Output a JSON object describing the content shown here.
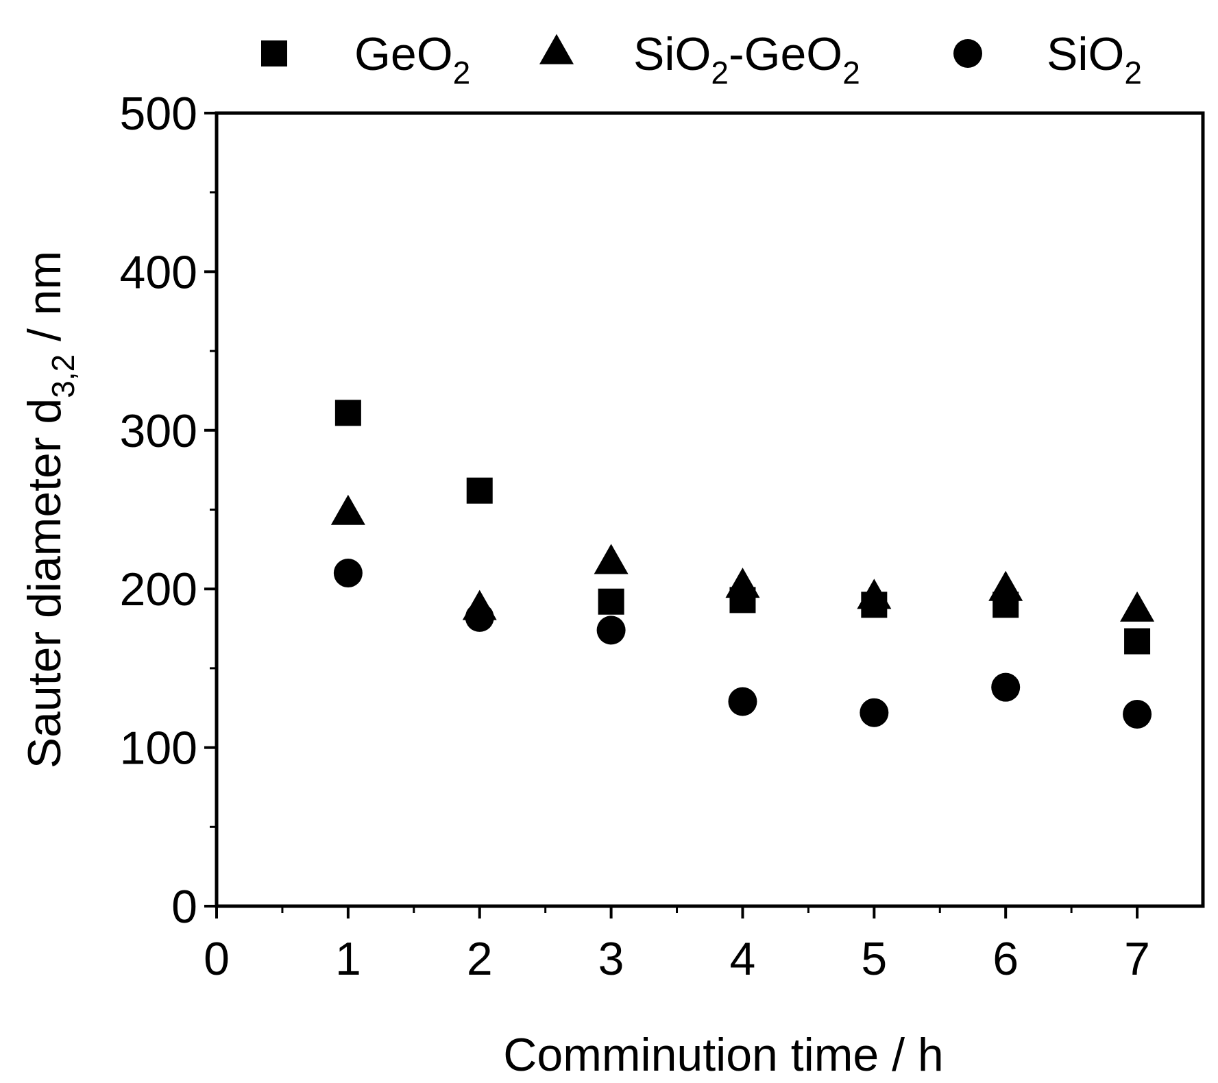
{
  "chart_data": {
    "type": "scatter",
    "title": "",
    "xlabel": "Comminution time / h",
    "ylabel": {
      "main": "Sauter diameter d",
      "subscript": "3,2",
      "unit": " / nm"
    },
    "xlim": [
      0,
      7.5
    ],
    "ylim": [
      0,
      500
    ],
    "x_ticks": [
      "0",
      "1",
      "2",
      "3",
      "4",
      "5",
      "6",
      "7"
    ],
    "y_ticks": [
      "0",
      "100",
      "200",
      "300",
      "400",
      "500"
    ],
    "x": [
      1,
      2,
      3,
      4,
      5,
      6,
      7
    ],
    "legend_position": "top",
    "series": [
      {
        "name": "GeO2",
        "label_parts": [
          "GeO",
          "2",
          ""
        ],
        "marker": "square",
        "values": [
          311,
          262,
          192,
          193,
          190,
          190,
          167
        ]
      },
      {
        "name": "SiO2-GeO2",
        "label_parts": [
          "SiO",
          "2",
          "-GeO",
          "2"
        ],
        "marker": "triangle",
        "values": [
          248,
          188,
          217,
          202,
          195,
          200,
          187
        ]
      },
      {
        "name": "SiO2",
        "label_parts": [
          "SiO",
          "2",
          ""
        ],
        "marker": "circle",
        "values": [
          210,
          182,
          174,
          129,
          122,
          138,
          121
        ]
      }
    ]
  }
}
